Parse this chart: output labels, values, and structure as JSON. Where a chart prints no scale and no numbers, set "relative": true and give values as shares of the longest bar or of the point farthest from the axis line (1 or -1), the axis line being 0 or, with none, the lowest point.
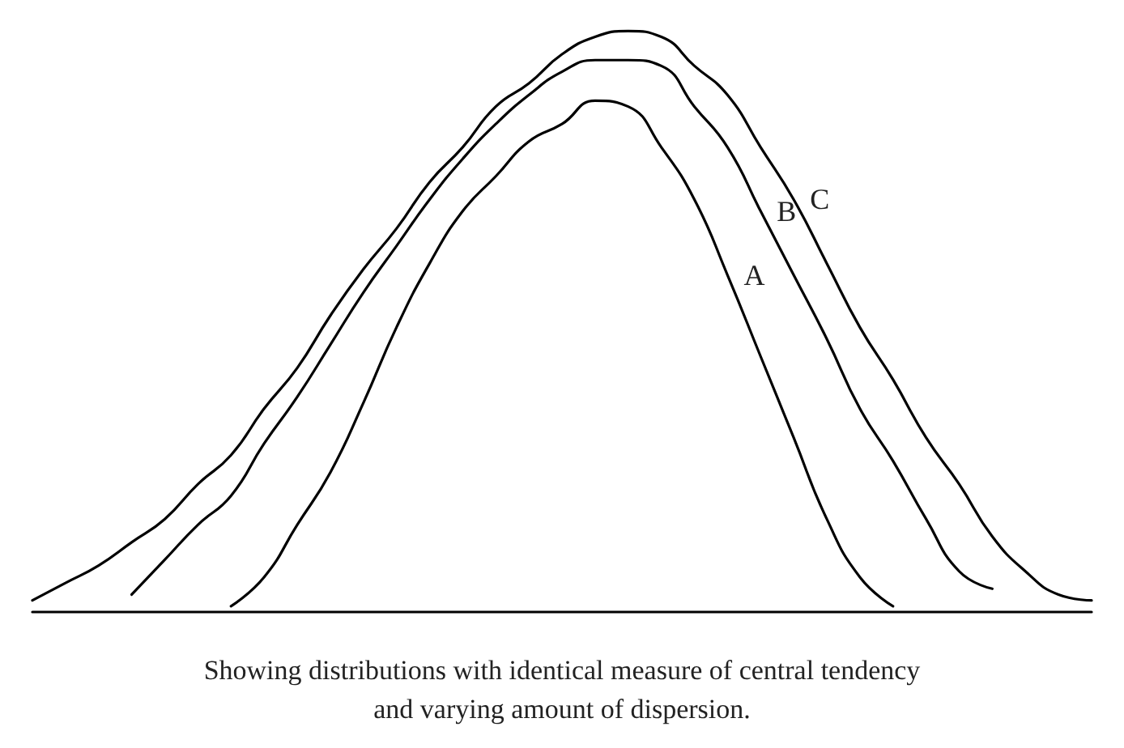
{
  "chart_data": {
    "type": "line",
    "relative": true,
    "marker": "none",
    "line_style": "solid",
    "legend": false,
    "grid": false,
    "categories": [
      null,
      null,
      null,
      null,
      null,
      null,
      null,
      null,
      null,
      null,
      null,
      null,
      null,
      null,
      null,
      null,
      null,
      null,
      null,
      null,
      null,
      null,
      null,
      null,
      null,
      null,
      null,
      null,
      null,
      null,
      null,
      null,
      null
    ],
    "series": [
      {
        "name": "A",
        "color": "#000000",
        "values": [
          null,
          null,
          null,
          null,
          null,
          null,
          0.01,
          0.06,
          0.15,
          0.24,
          0.36,
          0.49,
          0.6,
          0.69,
          0.75,
          0.81,
          0.84,
          0.88,
          0.87,
          0.8,
          0.71,
          0.58,
          0.44,
          0.3,
          0.16,
          0.06,
          0.01,
          null,
          null,
          null,
          null,
          null,
          null
        ]
      },
      {
        "name": "B",
        "color": "#000000",
        "values": [
          null,
          null,
          null,
          0.03,
          0.09,
          0.15,
          0.2,
          0.29,
          0.37,
          0.46,
          0.55,
          0.63,
          0.71,
          0.78,
          0.84,
          0.89,
          0.93,
          0.95,
          0.95,
          0.94,
          0.87,
          0.8,
          0.69,
          0.58,
          0.47,
          0.35,
          0.26,
          0.16,
          0.07,
          0.04,
          null,
          null,
          null
        ]
      },
      {
        "name": "C",
        "color": "#000000",
        "values": [
          0.02,
          0.05,
          0.08,
          0.12,
          0.16,
          0.22,
          0.27,
          0.35,
          0.42,
          0.51,
          0.59,
          0.66,
          0.74,
          0.8,
          0.87,
          0.91,
          0.96,
          0.99,
          1,
          0.99,
          0.94,
          0.89,
          0.8,
          0.71,
          0.6,
          0.49,
          0.4,
          0.3,
          0.22,
          0.13,
          0.07,
          0.03,
          0.02
        ]
      }
    ],
    "annotations": [
      "Showing distributions with identical measure of central tendency\nand varying amount of dispersion."
    ]
  }
}
